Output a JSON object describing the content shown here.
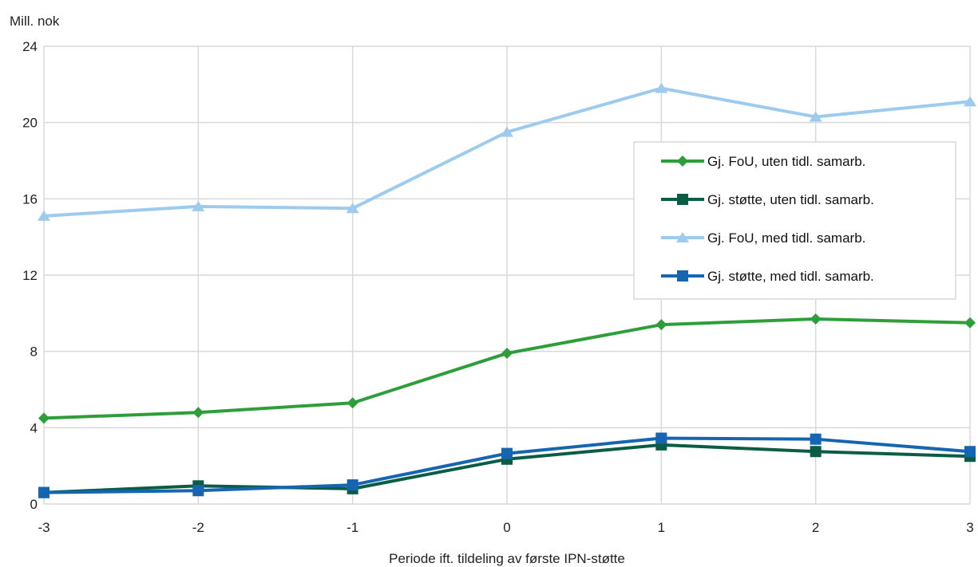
{
  "chart_data": {
    "type": "line",
    "title": "",
    "ylabel": "Mill. nok",
    "xlabel": "Periode ift. tildeling av første IPN-støtte",
    "x": [
      -3,
      -2,
      -1,
      0,
      1,
      2,
      3
    ],
    "xticks": [
      "-3",
      "-2",
      "-1",
      "0",
      "1",
      "2",
      "3"
    ],
    "ylim": [
      0,
      24
    ],
    "yticks": [
      0,
      4,
      8,
      12,
      16,
      20,
      24
    ],
    "grid": true,
    "legend_position": "right",
    "series": [
      {
        "name": "Gj. FoU, uten tidl. samarb.",
        "color": "#2e9e3a",
        "marker": "diamond",
        "values": [
          4.5,
          4.8,
          5.3,
          7.9,
          9.4,
          9.7,
          9.5
        ]
      },
      {
        "name": "Gj. støtte, uten tidl. samarb.",
        "color": "#0b5c45",
        "marker": "square",
        "values": [
          0.6,
          0.95,
          0.8,
          2.35,
          3.1,
          2.75,
          2.5
        ]
      },
      {
        "name": "Gj. FoU, med tidl. samarb.",
        "color": "#9ccbed",
        "marker": "triangle",
        "values": [
          15.1,
          15.6,
          15.5,
          19.5,
          21.8,
          20.3,
          21.1
        ]
      },
      {
        "name": "Gj. støtte, med tidl. samarb.",
        "color": "#1565b0",
        "marker": "square",
        "values": [
          0.6,
          0.7,
          1.0,
          2.65,
          3.45,
          3.4,
          2.75
        ]
      }
    ]
  }
}
